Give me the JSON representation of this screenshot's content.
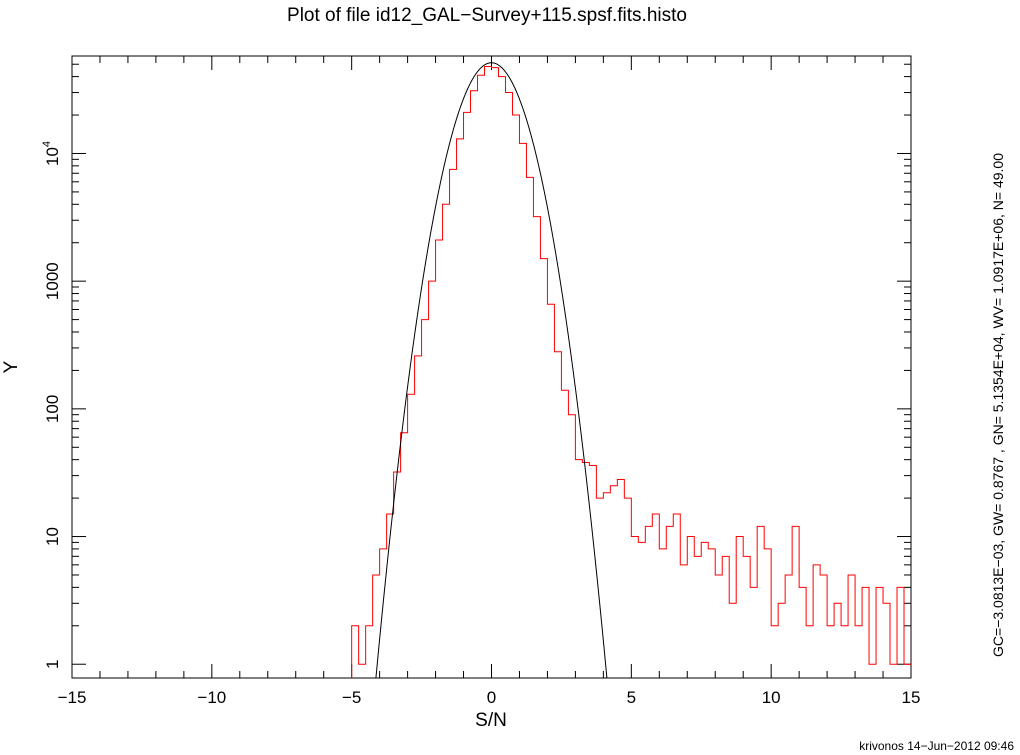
{
  "chart_data": {
    "type": "line",
    "title": "Plot of file id12_GAL−Survey+115.spsf.fits.histo",
    "xlabel": "S/N",
    "ylabel": "Y",
    "xlim": [
      -15,
      15
    ],
    "ylim": [
      0.78,
      58000
    ],
    "yscale": "log",
    "grid": false,
    "legend": "none",
    "x_ticks": [
      {
        "value": -15,
        "label": "−15"
      },
      {
        "value": -10,
        "label": "−10"
      },
      {
        "value": -5,
        "label": "−5"
      },
      {
        "value": 0,
        "label": "0"
      },
      {
        "value": 5,
        "label": "5"
      },
      {
        "value": 10,
        "label": "10"
      },
      {
        "value": 15,
        "label": "15"
      }
    ],
    "y_ticks": [
      {
        "value": 1,
        "label": "1"
      },
      {
        "value": 10,
        "label": "10"
      },
      {
        "value": 100,
        "label": "100"
      },
      {
        "value": 1000,
        "label": "1000"
      },
      {
        "value": 10000,
        "label": "10",
        "sup": "4"
      }
    ],
    "series": [
      {
        "style": "histogram-step",
        "color": "#ff0000",
        "x": [
          -4.75,
          -4.5,
          -4.25,
          -4.0,
          -3.75,
          -3.5,
          -3.25,
          -3.0,
          -2.75,
          -2.5,
          -2.25,
          -2.0,
          -1.75,
          -1.5,
          -1.25,
          -1.0,
          -0.75,
          -0.5,
          -0.25,
          0.0,
          0.25,
          0.5,
          0.75,
          1.0,
          1.25,
          1.5,
          1.75,
          2.0,
          2.25,
          2.5,
          2.75,
          3.0,
          3.25,
          3.5,
          3.75,
          4.0,
          4.25,
          4.5,
          4.75,
          5.0,
          5.25,
          5.5,
          5.75,
          6.0,
          6.25,
          6.5,
          6.75,
          7.0,
          7.25,
          7.5,
          7.75,
          8.0,
          8.25,
          8.5,
          8.75,
          9.0,
          9.25,
          9.5,
          9.75,
          10.0,
          10.25,
          10.5,
          10.75,
          11.0,
          11.25,
          11.5,
          11.75,
          12.0,
          12.25,
          12.5,
          12.75,
          13.0,
          13.25,
          13.5,
          13.75,
          14.0,
          14.25,
          14.5,
          14.75,
          15.0
        ],
        "values": [
          2,
          1,
          2,
          5,
          8,
          15,
          32,
          65,
          130,
          260,
          500,
          1000,
          2100,
          4000,
          7500,
          13000,
          21000,
          31000,
          41000,
          48000,
          47000,
          40000,
          30000,
          20000,
          12000,
          6500,
          3200,
          1500,
          660,
          280,
          140,
          90,
          40,
          38,
          36,
          20,
          22,
          25,
          28,
          20,
          10,
          9,
          12,
          15,
          8,
          12,
          15,
          6,
          10,
          7,
          9,
          8,
          5,
          7,
          3,
          10,
          7,
          4,
          12,
          8,
          2,
          3,
          5,
          12,
          4,
          2,
          6,
          5,
          2,
          3,
          2,
          5,
          2,
          4,
          1,
          4,
          3,
          1,
          4,
          1
        ],
        "x_start": -5.0
      },
      {
        "style": "gaussian-fit",
        "color": "#000000",
        "description_values": {
          "GC": -0.0030813,
          "GN": 51354,
          "GW": 0.8767
        }
      }
    ],
    "annotations": {
      "side_text": "GC=−3.0813E−03, GW= 0.8767     , GN= 5.1354E+04, WV= 1.0917E+06,  N=  49.00",
      "footer": "krivonos 14−Jun−2012 09:46"
    }
  }
}
